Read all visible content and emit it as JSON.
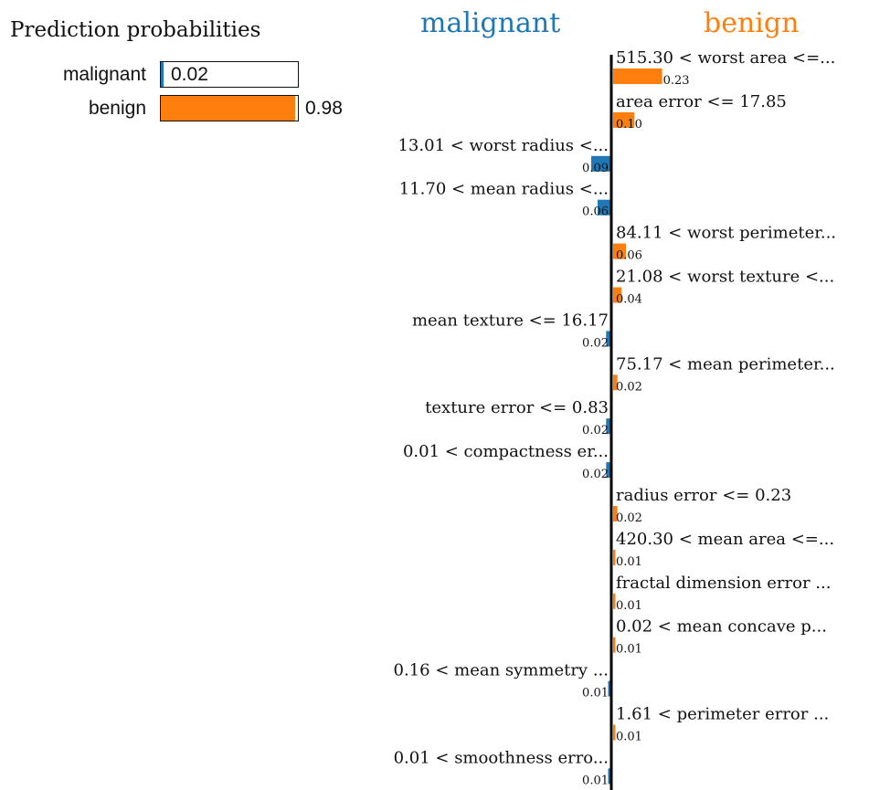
{
  "prediction_probabilities": {
    "title": "Prediction probabilities",
    "items": [
      {
        "label": "malignant",
        "value": 0.02,
        "value_text": "0.02",
        "color": "#1f77b4"
      },
      {
        "label": "benign",
        "value": 0.98,
        "value_text": "0.98",
        "color": "#ff7f0e"
      }
    ]
  },
  "chart_data": {
    "type": "bar",
    "orientation": "horizontal",
    "class_headers": {
      "negative": "malignant",
      "positive": "benign"
    },
    "colors": {
      "malignant": "#1f77b4",
      "benign": "#ff7f0e"
    },
    "features": [
      {
        "label": "515.30 < worst area <=...",
        "weight": 0.23,
        "weight_text": "0.23",
        "class": "benign"
      },
      {
        "label": "area error <= 17.85",
        "weight": 0.1,
        "weight_text": "0.10",
        "class": "benign"
      },
      {
        "label": "13.01 < worst radius <...",
        "weight": 0.09,
        "weight_text": "0.09",
        "class": "malignant"
      },
      {
        "label": "11.70 < mean radius <...",
        "weight": 0.06,
        "weight_text": "0.06",
        "class": "malignant"
      },
      {
        "label": "84.11 < worst perimeter...",
        "weight": 0.06,
        "weight_text": "0.06",
        "class": "benign"
      },
      {
        "label": "21.08 < worst texture <...",
        "weight": 0.04,
        "weight_text": "0.04",
        "class": "benign"
      },
      {
        "label": "mean texture <= 16.17",
        "weight": 0.02,
        "weight_text": "0.02",
        "class": "malignant"
      },
      {
        "label": "75.17 < mean perimeter...",
        "weight": 0.02,
        "weight_text": "0.02",
        "class": "benign"
      },
      {
        "label": "texture error <= 0.83",
        "weight": 0.02,
        "weight_text": "0.02",
        "class": "malignant"
      },
      {
        "label": "0.01 < compactness er...",
        "weight": 0.02,
        "weight_text": "0.02",
        "class": "malignant"
      },
      {
        "label": "radius error <= 0.23",
        "weight": 0.02,
        "weight_text": "0.02",
        "class": "benign"
      },
      {
        "label": "420.30 < mean area <=...",
        "weight": 0.01,
        "weight_text": "0.01",
        "class": "benign"
      },
      {
        "label": "fractal dimension error ...",
        "weight": 0.005,
        "weight_text": "0.01",
        "class": "benign"
      },
      {
        "label": "0.02 < mean concave p...",
        "weight": 0.005,
        "weight_text": "0.01",
        "class": "benign"
      },
      {
        "label": "0.16 < mean symmetry ...",
        "weight": 0.005,
        "weight_text": "0.01",
        "class": "malignant"
      },
      {
        "label": "1.61 < perimeter error ...",
        "weight": 0.005,
        "weight_text": "0.01",
        "class": "benign"
      },
      {
        "label": "0.01 < smoothness erro...",
        "weight": 0.005,
        "weight_text": "0.01",
        "class": "malignant"
      }
    ]
  }
}
